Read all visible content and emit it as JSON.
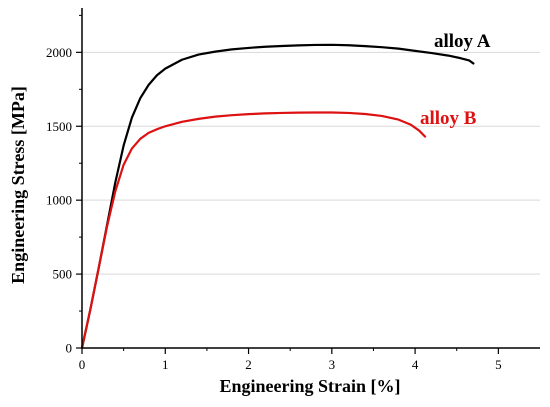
{
  "chart_data": {
    "type": "line",
    "xlabel": "Engineering Strain [%]",
    "ylabel": "Engineering Stress [MPa]",
    "xlim": [
      0,
      5.5
    ],
    "ylim": [
      0,
      2300
    ],
    "x_ticks": [
      0,
      1,
      2,
      3,
      4,
      5
    ],
    "y_ticks": [
      0,
      500,
      1000,
      1500,
      2000
    ],
    "grid": "horizontal",
    "legend": "none",
    "annotations": [
      {
        "text": "alloy A",
        "series": 0,
        "color": "#000000"
      },
      {
        "text": "alloy B",
        "series": 1,
        "color": "#dd1111"
      }
    ],
    "series": [
      {
        "name": "alloy A",
        "color": "#000000",
        "x": [
          0,
          0.1,
          0.2,
          0.3,
          0.4,
          0.5,
          0.6,
          0.7,
          0.8,
          0.9,
          1.0,
          1.2,
          1.4,
          1.6,
          1.8,
          2.0,
          2.2,
          2.4,
          2.6,
          2.8,
          3.0,
          3.2,
          3.4,
          3.6,
          3.8,
          4.0,
          4.2,
          4.4,
          4.55,
          4.65,
          4.7
        ],
        "y": [
          0,
          260,
          540,
          830,
          1120,
          1370,
          1560,
          1690,
          1780,
          1845,
          1890,
          1950,
          1985,
          2005,
          2020,
          2030,
          2038,
          2043,
          2047,
          2050,
          2051,
          2048,
          2042,
          2035,
          2025,
          2010,
          1995,
          1978,
          1960,
          1945,
          1925
        ]
      },
      {
        "name": "alloy B",
        "color": "#dd1111",
        "x": [
          0,
          0.1,
          0.2,
          0.3,
          0.4,
          0.5,
          0.6,
          0.7,
          0.8,
          0.9,
          1.0,
          1.2,
          1.4,
          1.6,
          1.8,
          2.0,
          2.2,
          2.4,
          2.6,
          2.8,
          3.0,
          3.2,
          3.4,
          3.6,
          3.8,
          3.95,
          4.05,
          4.12
        ],
        "y": [
          0,
          260,
          540,
          820,
          1060,
          1240,
          1350,
          1415,
          1455,
          1480,
          1500,
          1530,
          1550,
          1565,
          1575,
          1582,
          1587,
          1590,
          1592,
          1593,
          1593,
          1590,
          1583,
          1570,
          1545,
          1510,
          1470,
          1430
        ]
      }
    ]
  }
}
